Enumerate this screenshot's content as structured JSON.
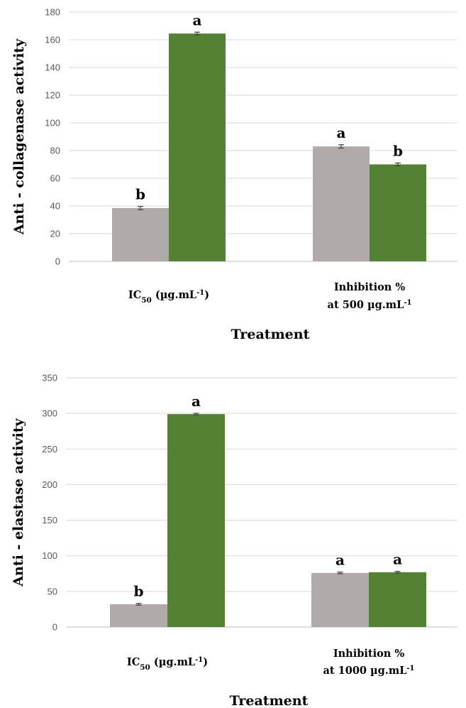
{
  "colors": {
    "series_a": "#b0abaa",
    "series_b": "#548235"
  },
  "chart_data": [
    {
      "type": "bar",
      "title": "",
      "ylabel": "Anti - collagenase activity",
      "xlabel": "Treatment",
      "ylim": [
        0,
        180
      ],
      "yticks": [
        0,
        20,
        40,
        60,
        80,
        100,
        120,
        140,
        160,
        180
      ],
      "grid": true,
      "categories": [
        {
          "main": "IC",
          "sub": "50",
          "rest": " (µg.mL",
          "sup": "-1",
          "end": ")"
        },
        {
          "line1": "Inhibition %",
          "line2_main": "at 500 µg.mL",
          "line2_sup": "-1"
        }
      ],
      "series": [
        {
          "color": "#b0abaa",
          "values": [
            38.5,
            83
          ],
          "errors": [
            1.2,
            1.2
          ],
          "labels": [
            "b",
            "a"
          ]
        },
        {
          "color": "#548235",
          "values": [
            164.5,
            70
          ],
          "errors": [
            1.0,
            1.0
          ],
          "labels": [
            "a",
            "b"
          ]
        }
      ]
    },
    {
      "type": "bar",
      "title": "",
      "ylabel": "Anti - elastase activity",
      "xlabel": "Treatment",
      "ylim": [
        0,
        350
      ],
      "yticks": [
        0,
        50,
        100,
        150,
        200,
        250,
        300,
        350
      ],
      "grid": true,
      "categories": [
        {
          "main": "IC",
          "sub": "50",
          "rest": " (µg.mL",
          "sup": "-1",
          "end": ")"
        },
        {
          "line1": "Inhibition %",
          "line2_main": "at 1000 µg.mL",
          "line2_sup": "-1"
        }
      ],
      "series": [
        {
          "color": "#b0abaa",
          "values": [
            32,
            76
          ],
          "errors": [
            1.2,
            1.2
          ],
          "labels": [
            "b",
            "a"
          ]
        },
        {
          "color": "#548235",
          "values": [
            299,
            77
          ],
          "errors": [
            1.2,
            1.2
          ],
          "labels": [
            "a",
            "a"
          ]
        }
      ]
    }
  ]
}
